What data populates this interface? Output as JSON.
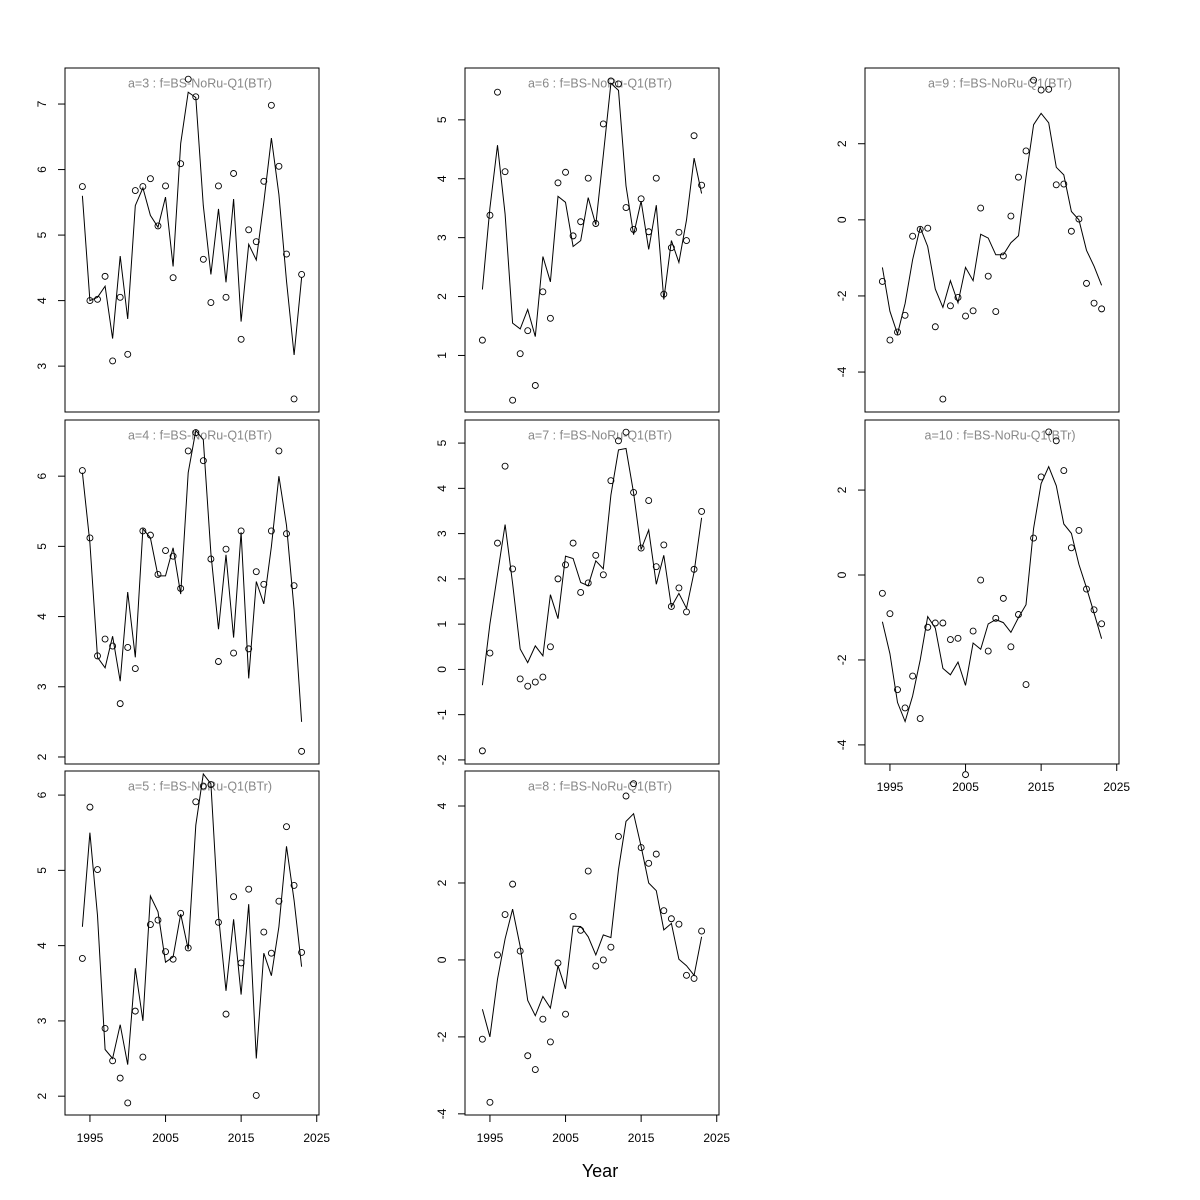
{
  "xlabel": "Year",
  "chart_data": [
    {
      "type": "line",
      "title": "a=3  :  f=BS-NoRu-Q1(BTr)",
      "x": [
        1994,
        1995,
        1996,
        1997,
        1998,
        1999,
        2000,
        2001,
        2002,
        2003,
        2004,
        2005,
        2006,
        2007,
        2008,
        2009,
        2010,
        2011,
        2012,
        2013,
        2014,
        2015,
        2016,
        2017,
        2018,
        2019,
        2020,
        2021,
        2022,
        2023
      ],
      "series": [
        {
          "style": "points",
          "values": [
            5.74,
            4.0,
            4.02,
            4.37,
            3.08,
            4.05,
            3.18,
            5.68,
            5.74,
            5.86,
            5.14,
            5.75,
            4.35,
            6.09,
            7.38,
            7.11,
            4.63,
            3.97,
            5.75,
            4.05,
            5.94,
            3.41,
            5.08,
            4.9,
            5.82,
            6.98,
            6.05,
            4.71,
            2.5,
            4.4
          ]
        },
        {
          "style": "line",
          "values": [
            5.6,
            4.0,
            4.05,
            4.22,
            3.42,
            4.68,
            3.72,
            5.45,
            5.72,
            5.3,
            5.12,
            5.58,
            4.52,
            6.4,
            7.18,
            7.1,
            5.45,
            4.4,
            5.4,
            4.28,
            5.55,
            3.68,
            4.86,
            4.62,
            5.5,
            6.48,
            5.62,
            4.3,
            3.17,
            4.35
          ]
        }
      ],
      "xlim": [
        1991.7,
        2025.3
      ],
      "ylim": [
        2.3,
        7.55
      ],
      "yticks": [
        3,
        4,
        5,
        6,
        7
      ]
    },
    {
      "type": "line",
      "title": "a=4  :  f=BS-NoRu-Q1(BTr)",
      "x": [
        1994,
        1995,
        1996,
        1997,
        1998,
        1999,
        2000,
        2001,
        2002,
        2003,
        2004,
        2005,
        2006,
        2007,
        2008,
        2009,
        2010,
        2011,
        2012,
        2013,
        2014,
        2015,
        2016,
        2017,
        2018,
        2019,
        2020,
        2021,
        2022,
        2023
      ],
      "series": [
        {
          "style": "points",
          "values": [
            6.08,
            5.12,
            3.44,
            3.68,
            3.58,
            2.76,
            3.56,
            3.26,
            5.22,
            5.16,
            4.6,
            4.94,
            4.86,
            4.4,
            6.36,
            6.62,
            6.22,
            4.82,
            3.36,
            4.96,
            3.48,
            5.22,
            3.54,
            4.64,
            4.46,
            5.22,
            6.36,
            5.18,
            4.44,
            2.08
          ]
        },
        {
          "style": "line",
          "values": [
            6.05,
            5.05,
            3.42,
            3.27,
            3.72,
            3.08,
            4.35,
            3.42,
            5.25,
            5.12,
            4.58,
            4.58,
            4.98,
            4.32,
            6.05,
            6.65,
            6.52,
            4.9,
            3.82,
            4.88,
            3.7,
            5.2,
            3.12,
            4.5,
            4.18,
            5.0,
            6.0,
            5.3,
            4.1,
            2.5
          ]
        }
      ],
      "xlim": [
        1991.7,
        2025.3
      ],
      "ylim": [
        1.9,
        6.8
      ],
      "yticks": [
        2,
        3,
        4,
        5,
        6
      ]
    },
    {
      "type": "line",
      "title": "a=5  :  f=BS-NoRu-Q1(BTr)",
      "x": [
        1994,
        1995,
        1996,
        1997,
        1998,
        1999,
        2000,
        2001,
        2002,
        2003,
        2004,
        2005,
        2006,
        2007,
        2008,
        2009,
        2010,
        2011,
        2012,
        2013,
        2014,
        2015,
        2016,
        2017,
        2018,
        2019,
        2020,
        2021,
        2022,
        2023
      ],
      "series": [
        {
          "style": "points",
          "values": [
            3.83,
            5.84,
            5.01,
            2.9,
            2.47,
            2.24,
            1.91,
            3.13,
            2.52,
            4.28,
            4.34,
            3.92,
            3.82,
            4.43,
            3.97,
            5.91,
            6.12,
            6.14,
            4.31,
            3.09,
            4.65,
            3.77,
            4.75,
            2.01,
            4.18,
            3.9,
            4.59,
            5.58,
            4.8,
            3.91
          ]
        },
        {
          "style": "line",
          "values": [
            4.25,
            5.5,
            4.4,
            2.62,
            2.5,
            2.95,
            2.42,
            3.7,
            3.0,
            4.66,
            4.45,
            3.78,
            3.85,
            4.42,
            3.95,
            5.6,
            6.28,
            6.15,
            4.4,
            3.4,
            4.35,
            3.35,
            4.55,
            2.5,
            3.9,
            3.6,
            4.25,
            5.32,
            4.6,
            3.72
          ]
        }
      ],
      "xlim": [
        1991.7,
        2025.3
      ],
      "ylim": [
        1.75,
        6.32
      ],
      "yticks": [
        2,
        3,
        4,
        5,
        6
      ],
      "xticks": [
        1995,
        2005,
        2015,
        2025
      ]
    },
    {
      "type": "line",
      "title": "a=6  :  f=BS-NoRu-Q1(BTr)",
      "x": [
        1994,
        1995,
        1996,
        1997,
        1998,
        1999,
        2000,
        2001,
        2002,
        2003,
        2004,
        2005,
        2006,
        2007,
        2008,
        2009,
        2010,
        2011,
        2012,
        2013,
        2014,
        2015,
        2016,
        2017,
        2018,
        2019,
        2020,
        2021,
        2022,
        2023
      ],
      "series": [
        {
          "style": "points",
          "values": [
            1.26,
            3.38,
            5.47,
            4.12,
            0.24,
            1.03,
            1.42,
            0.49,
            2.08,
            1.63,
            3.93,
            4.11,
            3.03,
            3.27,
            4.01,
            3.24,
            4.93,
            5.66,
            5.61,
            3.51,
            3.14,
            3.66,
            3.1,
            4.01,
            2.04,
            2.83,
            3.09,
            2.95,
            4.73,
            3.89
          ]
        },
        {
          "style": "line",
          "values": [
            2.12,
            3.5,
            4.57,
            3.4,
            1.55,
            1.45,
            1.78,
            1.32,
            2.68,
            2.25,
            3.7,
            3.6,
            2.85,
            2.95,
            3.68,
            3.22,
            4.4,
            5.62,
            5.5,
            3.88,
            3.05,
            3.62,
            2.8,
            3.55,
            1.95,
            2.95,
            2.58,
            3.3,
            4.35,
            3.75
          ]
        }
      ],
      "xlim": [
        1991.7,
        2025.3
      ],
      "ylim": [
        0.04,
        5.88
      ],
      "yticks": [
        1,
        2,
        3,
        4,
        5
      ]
    },
    {
      "type": "line",
      "title": "a=7  :  f=BS-NoRu-Q1(BTr)",
      "x": [
        1994,
        1995,
        1996,
        1997,
        1998,
        1999,
        2000,
        2001,
        2002,
        2003,
        2004,
        2005,
        2006,
        2007,
        2008,
        2009,
        2010,
        2011,
        2012,
        2013,
        2014,
        2015,
        2016,
        2017,
        2018,
        2019,
        2020,
        2021,
        2022,
        2023
      ],
      "series": [
        {
          "style": "points",
          "values": [
            -1.8,
            0.36,
            2.79,
            4.49,
            2.22,
            -0.21,
            -0.37,
            -0.28,
            -0.17,
            0.5,
            2.0,
            2.31,
            2.79,
            1.7,
            1.91,
            2.52,
            2.09,
            4.17,
            5.05,
            5.24,
            3.91,
            2.68,
            3.73,
            2.27,
            2.75,
            1.39,
            1.8,
            1.27,
            2.21,
            3.49
          ]
        },
        {
          "style": "line",
          "values": [
            -0.35,
            1.0,
            2.1,
            3.2,
            1.9,
            0.45,
            0.15,
            0.52,
            0.3,
            1.65,
            1.12,
            2.5,
            2.45,
            1.92,
            1.85,
            2.4,
            2.22,
            3.85,
            4.85,
            4.88,
            3.9,
            2.65,
            3.08,
            1.88,
            2.52,
            1.38,
            1.68,
            1.35,
            2.15,
            3.35
          ]
        }
      ],
      "xlim": [
        1991.7,
        2025.3
      ],
      "ylim": [
        -2.09,
        5.51
      ],
      "yticks": [
        -2,
        -1,
        0,
        1,
        2,
        3,
        4,
        5
      ]
    },
    {
      "type": "line",
      "title": "a=8  :  f=BS-NoRu-Q1(BTr)",
      "x": [
        1994,
        1995,
        1996,
        1997,
        1998,
        1999,
        2000,
        2001,
        2002,
        2003,
        2004,
        2005,
        2006,
        2007,
        2008,
        2009,
        2010,
        2011,
        2012,
        2013,
        2014,
        2015,
        2016,
        2017,
        2018,
        2019,
        2020,
        2021,
        2022,
        2023
      ],
      "series": [
        {
          "style": "points",
          "values": [
            -2.06,
            -3.7,
            0.13,
            1.18,
            1.97,
            0.23,
            -2.49,
            -2.85,
            -1.54,
            -2.13,
            -0.08,
            -1.41,
            1.13,
            0.77,
            2.31,
            -0.16,
            0.0,
            0.33,
            3.21,
            4.26,
            4.58,
            2.92,
            2.51,
            2.75,
            1.28,
            1.07,
            0.93,
            -0.4,
            -0.48,
            0.75
          ]
        },
        {
          "style": "line",
          "values": [
            -1.28,
            -2.0,
            -0.5,
            0.55,
            1.32,
            0.35,
            -1.05,
            -1.45,
            -0.95,
            -1.25,
            -0.15,
            -0.75,
            0.88,
            0.87,
            0.6,
            0.13,
            0.65,
            0.58,
            2.35,
            3.6,
            3.8,
            2.95,
            2.0,
            1.8,
            0.78,
            0.95,
            0.02,
            -0.15,
            -0.4,
            0.6
          ]
        }
      ],
      "xlim": [
        1991.7,
        2025.3
      ],
      "ylim": [
        -4.03,
        4.91
      ],
      "yticks": [
        -4,
        -2,
        0,
        2,
        4
      ],
      "xticks": [
        1995,
        2005,
        2015,
        2025
      ]
    },
    {
      "type": "line",
      "title": "a=9  :  f=BS-NoRu-Q1(BTr)",
      "x": [
        1994,
        1995,
        1996,
        1997,
        1998,
        1999,
        2000,
        2001,
        2002,
        2003,
        2004,
        2005,
        2006,
        2007,
        2008,
        2009,
        2010,
        2011,
        2012,
        2013,
        2014,
        2015,
        2016,
        2017,
        2018,
        2019,
        2020,
        2021,
        2022,
        2023
      ],
      "series": [
        {
          "style": "points",
          "values": [
            -1.62,
            -3.16,
            -2.95,
            -2.51,
            -0.43,
            -0.25,
            -0.22,
            -2.81,
            -4.71,
            -2.26,
            -2.04,
            -2.53,
            -2.39,
            0.31,
            -1.48,
            -2.41,
            -0.95,
            0.1,
            1.12,
            1.81,
            3.67,
            3.41,
            3.43,
            0.92,
            0.94,
            -0.3,
            0.02,
            -1.67,
            -2.19,
            -2.34
          ]
        },
        {
          "style": "line",
          "values": [
            -1.25,
            -2.4,
            -3.0,
            -2.2,
            -1.05,
            -0.2,
            -0.7,
            -1.82,
            -2.3,
            -1.6,
            -2.18,
            -1.25,
            -1.6,
            -0.38,
            -0.48,
            -0.92,
            -0.92,
            -0.6,
            -0.42,
            1.12,
            2.5,
            2.8,
            2.55,
            1.38,
            1.18,
            0.22,
            0.0,
            -0.8,
            -1.22,
            -1.72
          ]
        }
      ],
      "xlim": [
        1991.7,
        2025.3
      ],
      "ylim": [
        -5.05,
        3.99
      ],
      "yticks": [
        -4,
        -2,
        0,
        2
      ]
    },
    {
      "type": "line",
      "title": "a=10  :  f=BS-NoRu-Q1(BTr)",
      "x": [
        1994,
        1995,
        1996,
        1997,
        1998,
        1999,
        2000,
        2001,
        2002,
        2003,
        2004,
        2005,
        2006,
        2007,
        2008,
        2009,
        2010,
        2011,
        2012,
        2013,
        2014,
        2015,
        2016,
        2017,
        2018,
        2019,
        2020,
        2021,
        2022,
        2023
      ],
      "series": [
        {
          "style": "points",
          "values": [
            -0.43,
            -0.91,
            -2.7,
            -3.13,
            -2.38,
            -3.38,
            -1.23,
            -1.13,
            -1.13,
            -1.52,
            -1.49,
            -4.7,
            -1.32,
            -0.12,
            -1.79,
            -1.02,
            -0.55,
            -1.69,
            -0.93,
            -2.58,
            0.87,
            2.31,
            3.37,
            3.16,
            2.46,
            0.64,
            1.05,
            -0.33,
            -0.82,
            -1.15
          ]
        },
        {
          "style": "line",
          "values": [
            -1.1,
            -1.85,
            -3.0,
            -3.45,
            -2.85,
            -2.0,
            -0.98,
            -1.25,
            -2.2,
            -2.35,
            -2.05,
            -2.6,
            -1.6,
            -1.75,
            -1.15,
            -1.05,
            -1.12,
            -1.35,
            -1.0,
            -0.7,
            1.1,
            2.15,
            2.55,
            2.1,
            1.2,
            0.98,
            0.25,
            -0.3,
            -0.9,
            -1.5
          ]
        }
      ],
      "xlim": [
        1991.7,
        2025.3
      ],
      "ylim": [
        -4.45,
        3.65
      ],
      "yticks": [
        -4,
        -2,
        0,
        2
      ],
      "xticks": [
        1995,
        2005,
        2015,
        2025
      ]
    }
  ]
}
